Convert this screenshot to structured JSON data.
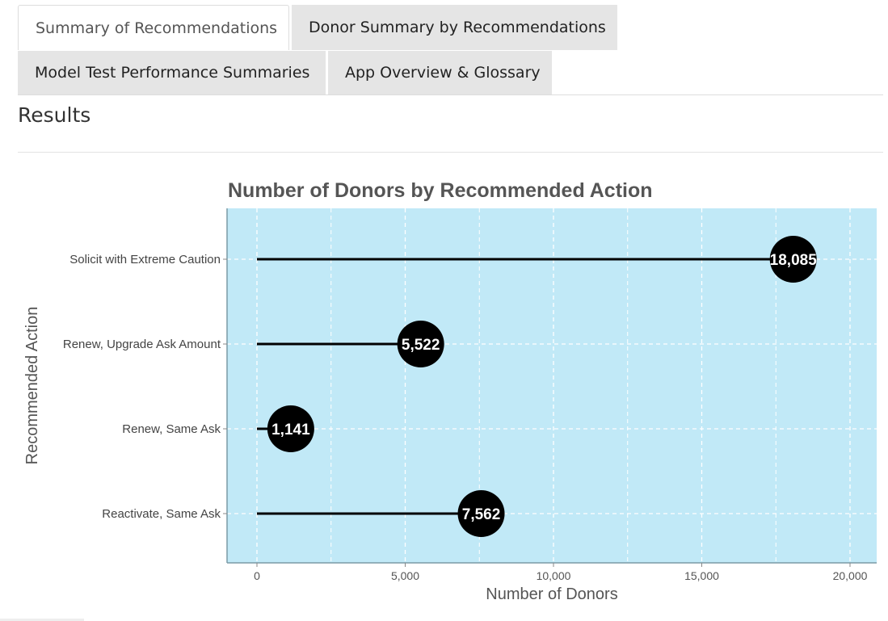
{
  "tabs": [
    {
      "label": "Summary of Recommendations",
      "active": true
    },
    {
      "label": "Donor Summary by Recommendations",
      "active": false
    },
    {
      "label": "Model Test Performance Summaries",
      "active": false
    },
    {
      "label": "App Overview & Glossary",
      "active": false
    }
  ],
  "results": {
    "heading": "Results"
  },
  "colors": {
    "panel_background": "#c1e9f7",
    "grid": "#ffffff",
    "marker": "#000000",
    "marker_text": "#ffffff",
    "axis": "#7a9aa6"
  },
  "chart_data": {
    "type": "lollipop",
    "orientation": "horizontal",
    "title": "Number of Donors by Recommended Action",
    "xlabel": "Number of Donors",
    "ylabel": "Recommended Action",
    "xlim": [
      -1000,
      20900
    ],
    "x_ticks": [
      0,
      5000,
      10000,
      15000,
      20000
    ],
    "x_tick_labels": [
      "0",
      "5,000",
      "10,000",
      "15,000",
      "20,000"
    ],
    "grid": true,
    "categories": [
      "Solicit with Extreme Caution",
      "Renew, Upgrade Ask Amount",
      "Renew, Same Ask",
      "Reactivate, Same Ask"
    ],
    "values": [
      18085,
      5522,
      1141,
      7562
    ],
    "value_labels": [
      "18,085",
      "5,522",
      "1,141",
      "7,562"
    ]
  }
}
